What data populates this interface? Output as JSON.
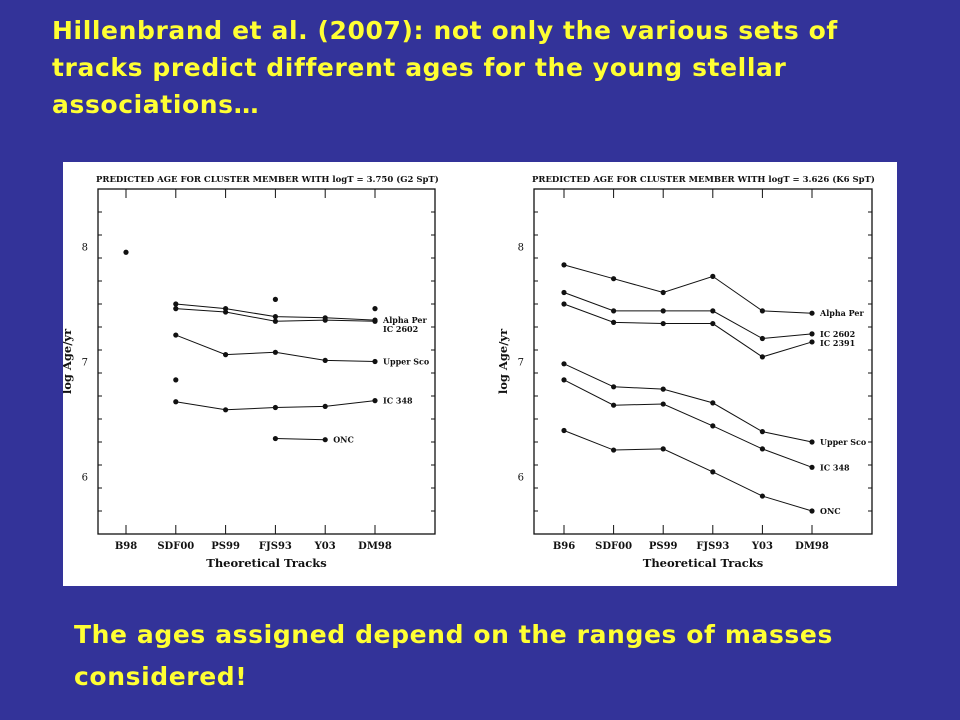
{
  "heading": {
    "text": "Hillenbrand et al. (2007): not only the various sets of tracks predict different ages for the young stellar associations…"
  },
  "footnote": {
    "text": "The ages assigned depend on the ranges of masses considered!"
  },
  "colors": {
    "background": "#333399",
    "text": "#ffff33",
    "plot_bg": "#ffffff",
    "ink": "#111111"
  },
  "chart_data": [
    {
      "type": "line",
      "title": "PREDICTED AGE FOR CLUSTER MEMBER WITH logT = 3.750 (G2 SpT)",
      "xlabel": "Theoretical Tracks",
      "ylabel": "log Age/yr",
      "categories": [
        "B98",
        "SDF00",
        "PS99",
        "FJS93",
        "Y03",
        "DM98"
      ],
      "ylim": [
        5.5,
        8.5
      ],
      "yticks": [
        6,
        7,
        8
      ],
      "yticklabels": [
        "6",
        "7",
        "8"
      ],
      "series": [
        {
          "name": "Alpha Per",
          "values": [
            null,
            7.5,
            7.46,
            7.39,
            7.38,
            7.36
          ]
        },
        {
          "name": "IC 2602",
          "values": [
            null,
            7.46,
            7.43,
            7.35,
            7.36,
            7.35
          ]
        },
        {
          "name": "Upper Sco",
          "values": [
            null,
            7.23,
            7.06,
            7.08,
            7.01,
            7.0
          ]
        },
        {
          "name": "IC 348",
          "values": [
            null,
            6.65,
            6.58,
            6.6,
            6.61,
            6.66
          ]
        },
        {
          "name": "ONC",
          "values": [
            null,
            null,
            null,
            6.33,
            6.32,
            null
          ]
        }
      ],
      "points": [
        {
          "category": "B98",
          "value": 7.95
        },
        {
          "category": "SDF00",
          "value": 6.84
        },
        {
          "category": "FJS93",
          "value": 7.54
        },
        {
          "category": "DM98",
          "value": 7.46
        }
      ]
    },
    {
      "type": "line",
      "title": "PREDICTED AGE FOR CLUSTER MEMBER WITH logT = 3.626 (K6 SpT)",
      "xlabel": "Theoretical Tracks",
      "ylabel": "log Age/yr",
      "categories": [
        "B96",
        "SDF00",
        "PS99",
        "FJS93",
        "Y03",
        "DM98"
      ],
      "ylim": [
        5.5,
        8.5
      ],
      "yticks": [
        6,
        7,
        8
      ],
      "yticklabels": [
        "6",
        "7",
        "8"
      ],
      "series": [
        {
          "name": "Alpha Per",
          "values": [
            7.84,
            7.72,
            7.6,
            7.74,
            7.44,
            7.42
          ]
        },
        {
          "name": "IC 2602",
          "values": [
            7.6,
            7.44,
            7.44,
            7.44,
            7.2,
            7.24
          ]
        },
        {
          "name": "IC 2391",
          "values": [
            7.5,
            7.34,
            7.33,
            7.33,
            7.04,
            7.17
          ]
        },
        {
          "name": "Upper Sco",
          "values": [
            6.98,
            6.78,
            6.76,
            6.64,
            6.39,
            6.3
          ]
        },
        {
          "name": "IC 348",
          "values": [
            6.84,
            6.62,
            6.63,
            6.44,
            6.24,
            6.08
          ]
        },
        {
          "name": "ONC",
          "values": [
            6.4,
            6.23,
            6.24,
            6.04,
            5.83,
            5.7
          ]
        }
      ]
    }
  ]
}
